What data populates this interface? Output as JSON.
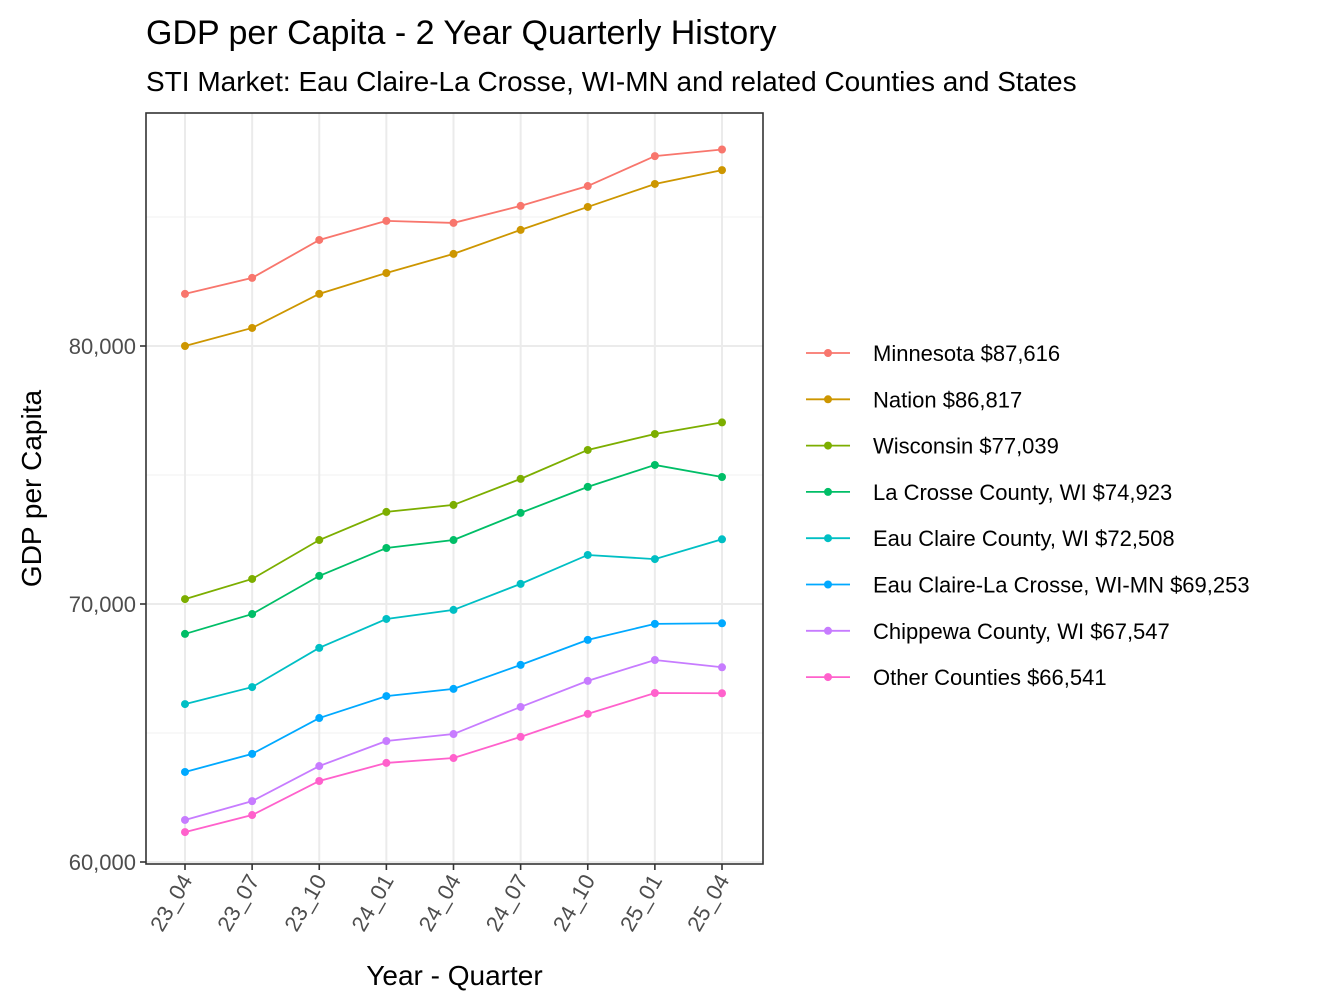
{
  "chart_data": {
    "type": "line",
    "title": "GDP per Capita - 2 Year Quarterly History",
    "subtitle": "STI Market: Eau Claire-La Crosse, WI-MN and related Counties and States",
    "xlabel": "Year - Quarter",
    "ylabel": "GDP per Capita",
    "x": [
      "23_04",
      "23_07",
      "23_10",
      "24_01",
      "24_04",
      "24_07",
      "24_10",
      "25_01",
      "25_04"
    ],
    "ylim": [
      59900,
      88600
    ],
    "yticks": [
      60000,
      70000,
      80000
    ],
    "ytick_labels": [
      "60,000",
      "70,000",
      "80,000"
    ],
    "grid": true,
    "legend_position": "right",
    "series": [
      {
        "name": "Minnesota",
        "legend_label": "Minnesota $87,616",
        "color": "#F8766D",
        "values": [
          82020,
          82640,
          84110,
          84850,
          84770,
          85430,
          86200,
          87360,
          87616
        ]
      },
      {
        "name": "Nation",
        "legend_label": "Nation $86,817",
        "color": "#CD9600",
        "values": [
          80000,
          80700,
          82020,
          82830,
          83570,
          84500,
          85390,
          86280,
          86817
        ]
      },
      {
        "name": "Wisconsin",
        "legend_label": "Wisconsin $77,039",
        "color": "#7CAE00",
        "values": [
          70190,
          70970,
          72480,
          73570,
          73840,
          74850,
          75970,
          76590,
          77039
        ]
      },
      {
        "name": "La Crosse County, WI",
        "legend_label": "La Crosse County, WI $74,923",
        "color": "#00BE67",
        "values": [
          68840,
          69610,
          71090,
          72170,
          72480,
          73530,
          74540,
          75390,
          74923
        ]
      },
      {
        "name": "Eau Claire County, WI",
        "legend_label": "Eau Claire County, WI $72,508",
        "color": "#00BFC4",
        "values": [
          66120,
          66780,
          68300,
          69420,
          69770,
          70780,
          71900,
          71740,
          72508
        ]
      },
      {
        "name": "Eau Claire-La Crosse, WI-MN",
        "legend_label": "Eau Claire-La Crosse, WI-MN $69,253",
        "color": "#00A9FF",
        "values": [
          63490,
          64190,
          65580,
          66430,
          66710,
          67640,
          68610,
          69230,
          69253
        ]
      },
      {
        "name": "Chippewa County, WI",
        "legend_label": "Chippewa County, WI $67,547",
        "color": "#C77CFF",
        "values": [
          61630,
          62360,
          63720,
          64690,
          64960,
          66010,
          67020,
          67830,
          67547
        ]
      },
      {
        "name": "Other Counties",
        "legend_label": "Other Counties $66,541",
        "color": "#FF61CC",
        "values": [
          61160,
          61820,
          63140,
          63840,
          64030,
          64850,
          65740,
          66550,
          66541
        ]
      }
    ]
  }
}
